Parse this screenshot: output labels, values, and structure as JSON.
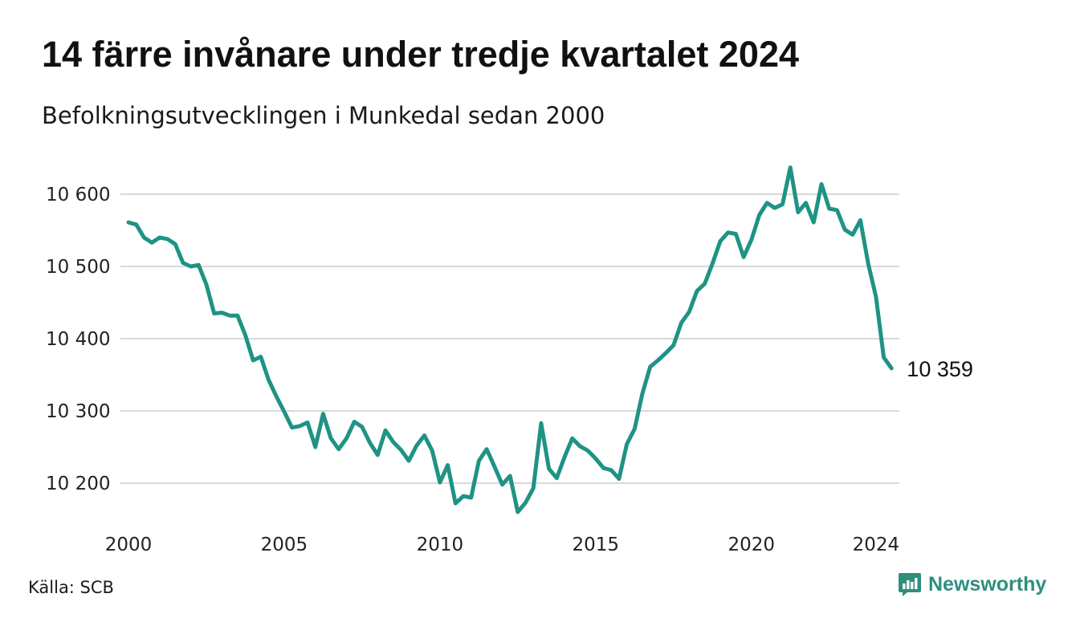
{
  "header": {
    "title": "14 färre invånare under tredje kvartalet 2024",
    "subtitle": "Befolkningsutvecklingen i Munkedal sedan 2000"
  },
  "footer": {
    "source": "Källa: SCB",
    "brand": "Newsworthy"
  },
  "colors": {
    "line": "#1f9384",
    "grid": "#d9d9d9",
    "brand": "#2f8f7e"
  },
  "chart_data": {
    "type": "line",
    "title": "14 färre invånare under tredje kvartalet 2024",
    "subtitle": "Befolkningsutvecklingen i Munkedal sedan 2000",
    "xlabel": "",
    "ylabel": "",
    "x_unit": "year (quarterly)",
    "xlim": [
      2000,
      2024.75
    ],
    "ylim": [
      10150,
      10650
    ],
    "y_ticks": [
      10200,
      10300,
      10400,
      10500,
      10600
    ],
    "y_tick_labels": [
      "10 200",
      "10 300",
      "10 400",
      "10 500",
      "10 600"
    ],
    "x_ticks": [
      2000,
      2005,
      2010,
      2015,
      2020,
      2024
    ],
    "x_tick_labels": [
      "2000",
      "2005",
      "2010",
      "2015",
      "2020",
      "2024"
    ],
    "grid": "horizontal",
    "end_label": "10 359",
    "series": [
      {
        "x_start": 2000,
        "x_step": 0.25,
        "values": [
          10561,
          10558,
          10540,
          10533,
          10540,
          10538,
          10531,
          10505,
          10500,
          10502,
          10475,
          10435,
          10436,
          10432,
          10432,
          10405,
          10370,
          10375,
          10343,
          10320,
          10299,
          10277,
          10279,
          10284,
          10250,
          10296,
          10262,
          10247,
          10262,
          10285,
          10278,
          10256,
          10239,
          10273,
          10257,
          10246,
          10231,
          10252,
          10266,
          10245,
          10201,
          10225,
          10172,
          10182,
          10180,
          10231,
          10247,
          10223,
          10198,
          10210,
          10160,
          10173,
          10193,
          10283,
          10220,
          10207,
          10236,
          10262,
          10251,
          10245,
          10234,
          10221,
          10218,
          10206,
          10254,
          10275,
          10324,
          10361,
          10370,
          10380,
          10391,
          10422,
          10437,
          10466,
          10476,
          10504,
          10535,
          10547,
          10545,
          10513,
          10537,
          10571,
          10588,
          10581,
          10586,
          10637,
          10575,
          10588,
          10561,
          10614,
          10580,
          10578,
          10551,
          10544,
          10564,
          10504,
          10458,
          10374,
          10359
        ]
      }
    ]
  }
}
